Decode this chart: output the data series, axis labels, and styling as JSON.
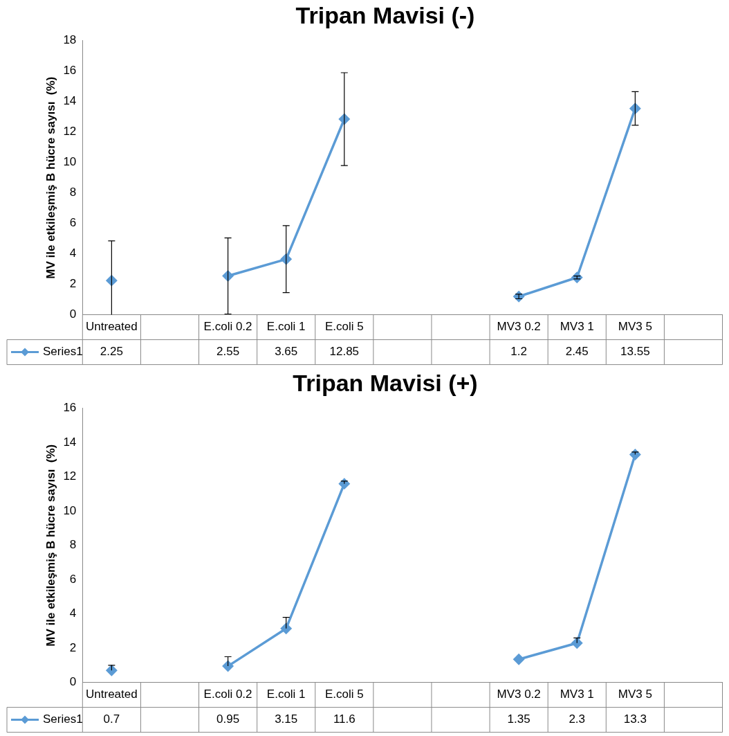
{
  "chart_data": [
    {
      "type": "line",
      "title": "Tripan Mavisi (-)",
      "ylabel": "MV ile etkileşmiş B hücre sayısı  (%)",
      "categories": [
        "Untreated",
        null,
        "E.coli 0.2",
        "E.coli 1",
        "E.coli 5",
        null,
        null,
        "MV3 0.2",
        "MV3 1",
        "MV3 5",
        null
      ],
      "series": [
        {
          "name": "Series1",
          "color": "#5b9bd5",
          "values": [
            2.25,
            null,
            2.55,
            3.65,
            12.85,
            null,
            null,
            1.2,
            2.45,
            13.55,
            null
          ],
          "errors": [
            [
              0,
              4.85
            ],
            null,
            2.5,
            2.2,
            3.05,
            null,
            null,
            0.15,
            0.1,
            1.1,
            null
          ]
        }
      ],
      "ylim": [
        0,
        18
      ],
      "yticks": [
        0,
        2,
        4,
        6,
        8,
        10,
        12,
        14,
        16,
        18
      ],
      "grid": false,
      "marker": "diamond",
      "line_style": "solid",
      "data_labels": true
    },
    {
      "type": "line",
      "title": "Tripan Mavisi (+)",
      "ylabel": "MV ile etkileşmiş B hücre sayısı  (%)",
      "categories": [
        "Untreated",
        null,
        "E.coli 0.2",
        "E.coli 1",
        "E.coli 5",
        null,
        null,
        "MV3 0.2",
        "MV3 1",
        "MV3 5",
        null
      ],
      "series": [
        {
          "name": "Series1",
          "color": "#5b9bd5",
          "values": [
            0.7,
            null,
            0.95,
            3.15,
            11.6,
            null,
            null,
            1.35,
            2.3,
            13.3,
            null
          ],
          "errors": [
            [
              0.7,
              1.0
            ],
            null,
            [
              0.95,
              1.5
            ],
            [
              3.15,
              3.8
            ],
            [
              11.6,
              11.75
            ],
            null,
            null,
            null,
            [
              2.3,
              2.6
            ],
            [
              13.3,
              13.45
            ],
            null
          ]
        }
      ],
      "ylim": [
        0,
        16
      ],
      "yticks": [
        0,
        2,
        4,
        6,
        8,
        10,
        12,
        14,
        16
      ],
      "grid": false,
      "marker": "diamond",
      "line_style": "solid",
      "data_labels": true
    }
  ]
}
